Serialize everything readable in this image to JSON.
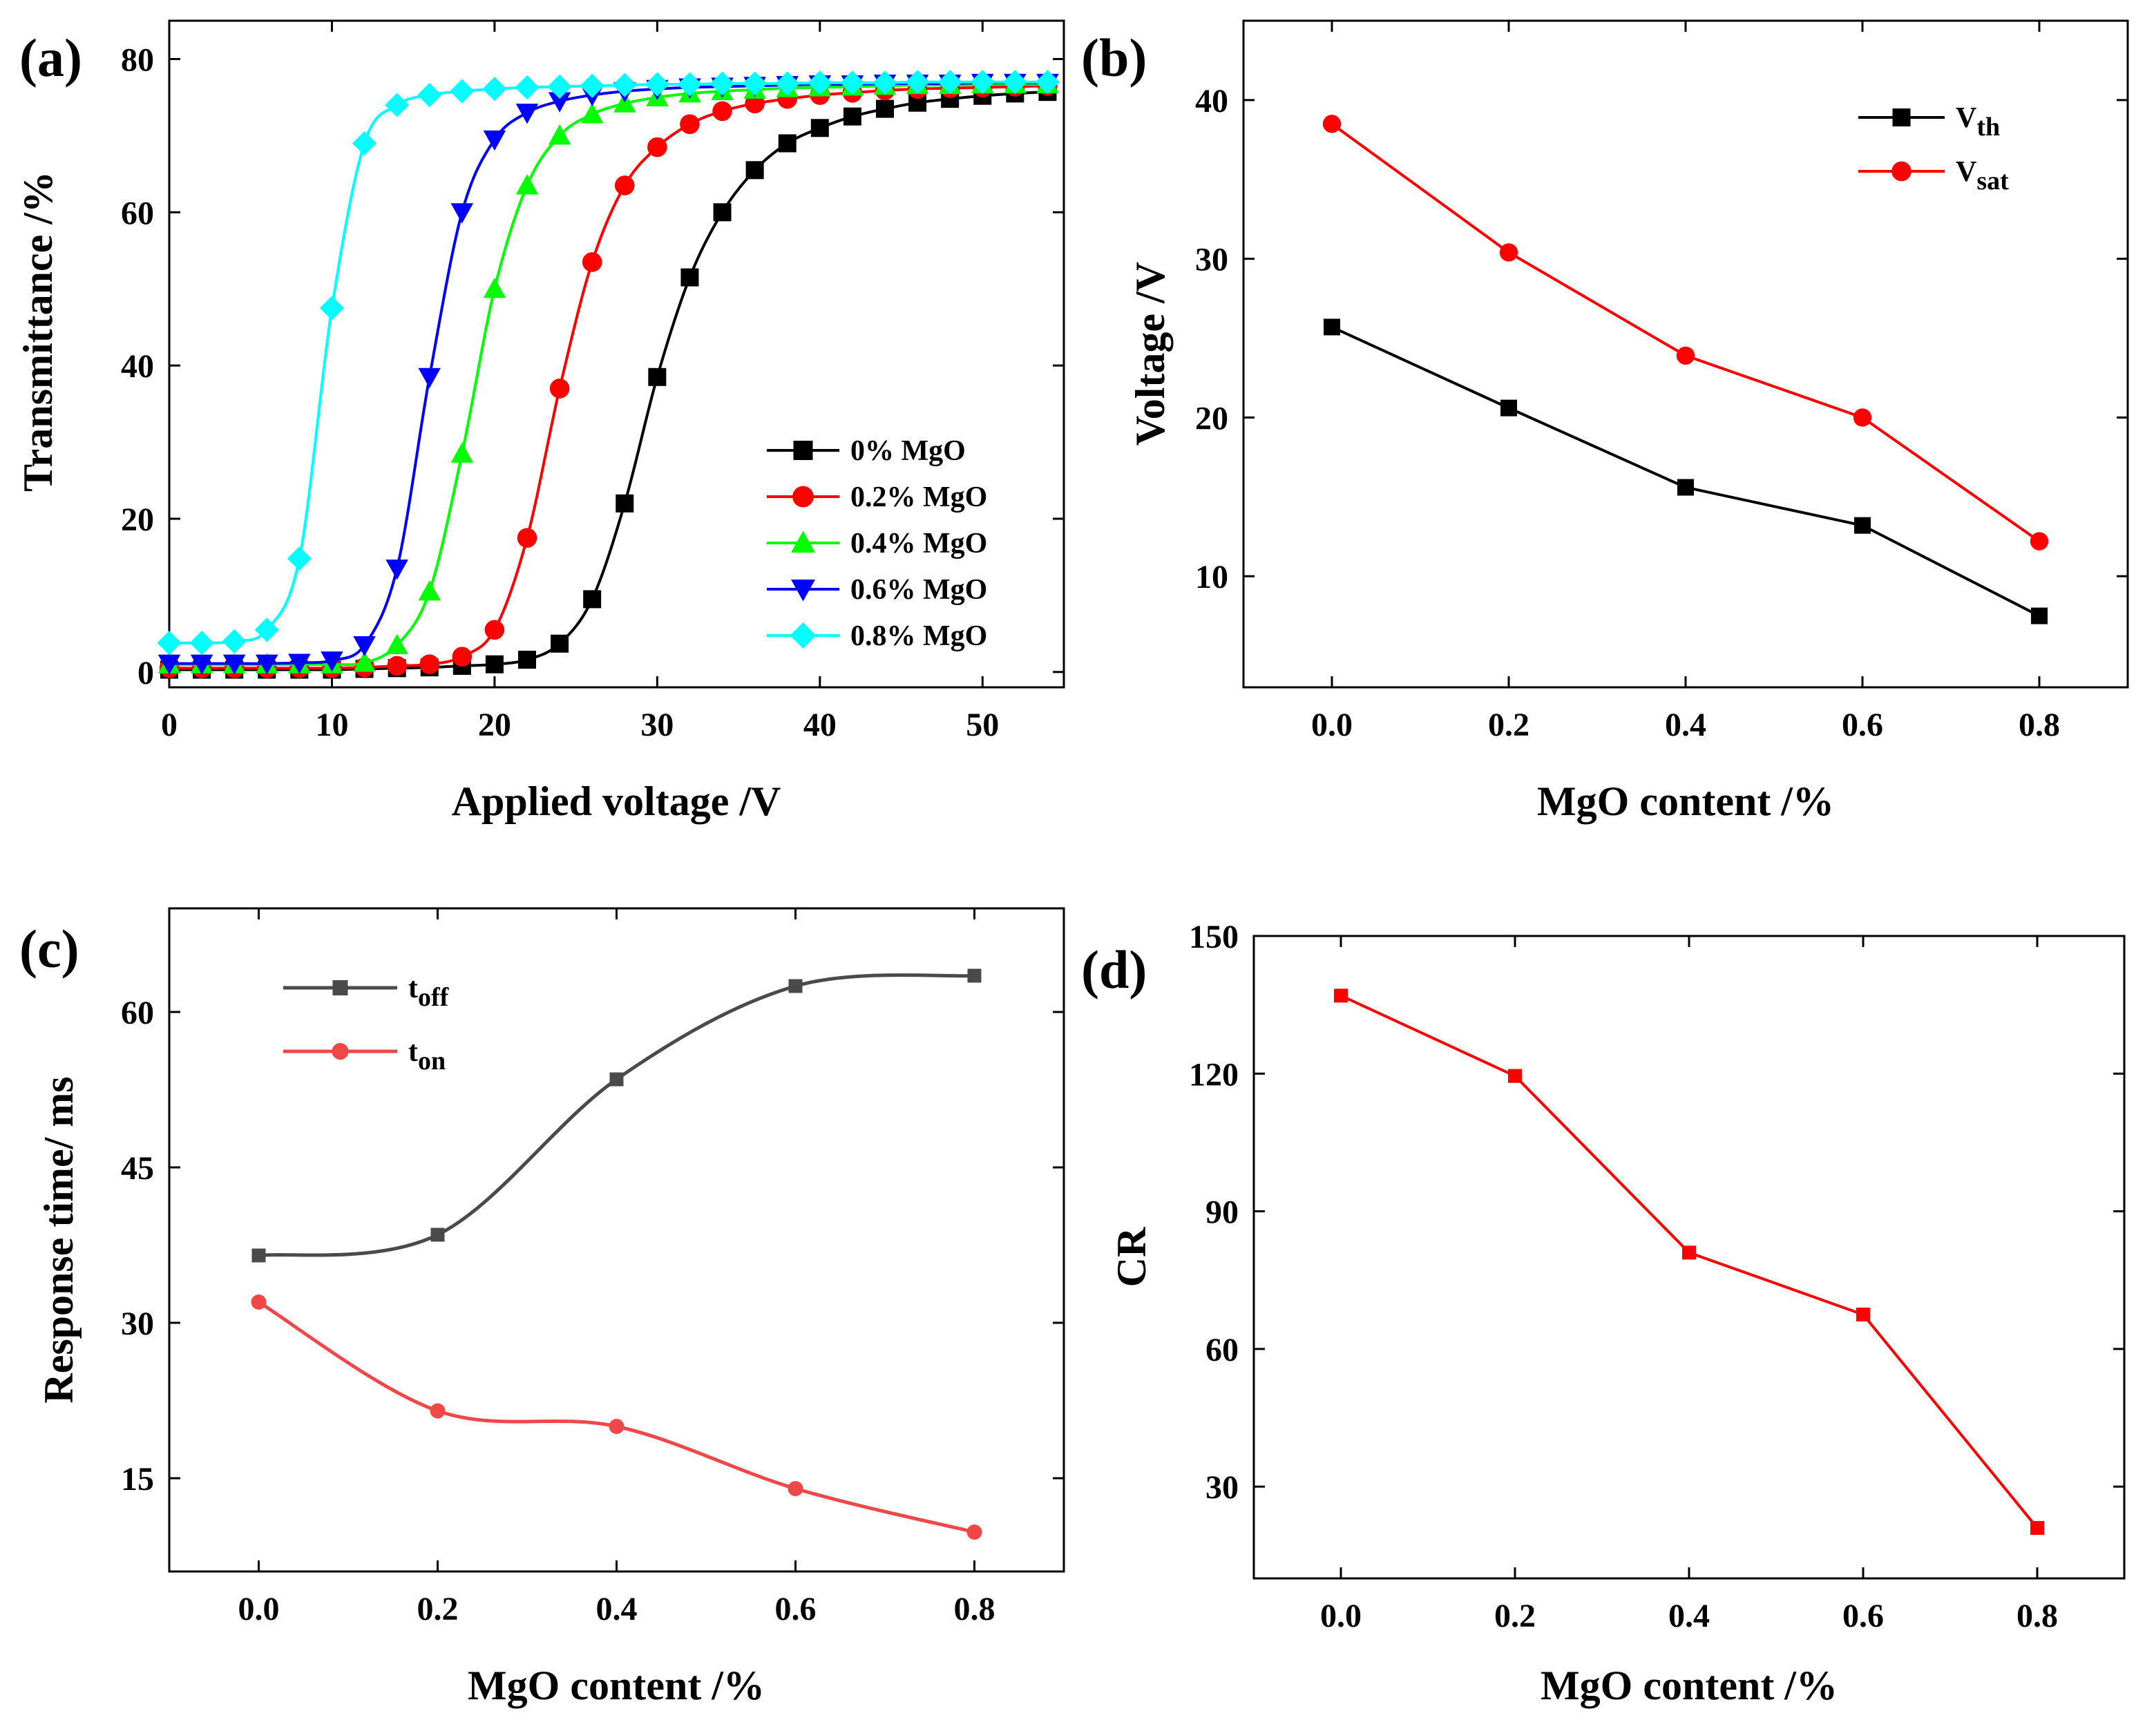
{
  "panel_labels": [
    "(a)",
    "(b)",
    "(c)",
    "(d)"
  ],
  "chart_data": [
    {
      "panel": "(a)",
      "type": "line",
      "xlabel": "Applied voltage /V",
      "ylabel": "Transmittance /%",
      "xlim": [
        0,
        55
      ],
      "ylim": [
        -2,
        85
      ],
      "xticks": [
        0,
        10,
        20,
        30,
        40,
        50
      ],
      "yticks": [
        0,
        20,
        40,
        60,
        80
      ],
      "x": [
        0,
        2,
        4,
        6,
        8,
        10,
        12,
        14,
        16,
        18,
        20,
        22,
        24,
        26,
        28,
        30,
        32,
        34,
        36,
        38,
        40,
        42,
        44,
        46,
        48,
        50,
        52,
        54
      ],
      "series": [
        {
          "name": "0% MgO",
          "color": "#000000",
          "marker": "square",
          "values": [
            0.3,
            0.3,
            0.3,
            0.3,
            0.3,
            0.3,
            0.4,
            0.5,
            0.6,
            0.8,
            1.0,
            1.6,
            3.7,
            9.5,
            22.0,
            38.5,
            51.5,
            60.0,
            65.5,
            69.0,
            71.0,
            72.5,
            73.5,
            74.3,
            74.8,
            75.2,
            75.5,
            75.7
          ]
        },
        {
          "name": "0.2% MgO",
          "color": "#ff0000",
          "marker": "circle",
          "values": [
            0.5,
            0.5,
            0.5,
            0.5,
            0.5,
            0.5,
            0.6,
            0.8,
            1.0,
            2.0,
            5.5,
            17.5,
            37.0,
            53.5,
            63.5,
            68.5,
            71.5,
            73.2,
            74.2,
            74.8,
            75.3,
            75.6,
            75.9,
            76.1,
            76.2,
            76.3,
            76.4,
            76.5
          ]
        },
        {
          "name": "0.4% MgO",
          "color": "#00ff00",
          "marker": "triangle-up",
          "values": [
            1.0,
            1.0,
            1.0,
            1.0,
            1.0,
            1.0,
            1.2,
            3.5,
            10.5,
            28.5,
            50.0,
            63.5,
            70.0,
            72.8,
            74.2,
            75.0,
            75.5,
            75.8,
            76.0,
            76.2,
            76.3,
            76.4,
            76.5,
            76.6,
            76.6,
            76.7,
            76.7,
            76.7
          ]
        },
        {
          "name": "0.6% MgO",
          "color": "#0000ff",
          "marker": "triangle-down",
          "values": [
            1.1,
            1.1,
            1.1,
            1.1,
            1.2,
            1.5,
            3.5,
            13.5,
            38.5,
            60.0,
            69.5,
            73.0,
            74.5,
            75.3,
            75.8,
            76.1,
            76.3,
            76.4,
            76.5,
            76.6,
            76.7,
            76.7,
            76.8,
            76.8,
            76.8,
            76.9,
            76.9,
            76.9
          ]
        },
        {
          "name": "0.8% MgO",
          "color": "#00ffff",
          "marker": "diamond",
          "values": [
            3.8,
            3.8,
            4.0,
            5.5,
            14.8,
            47.5,
            69.0,
            74.0,
            75.3,
            75.8,
            76.1,
            76.3,
            76.4,
            76.5,
            76.6,
            76.7,
            76.7,
            76.8,
            76.8,
            76.8,
            76.9,
            76.9,
            76.9,
            77.0,
            77.0,
            77.0,
            77.0,
            77.0
          ]
        }
      ]
    },
    {
      "panel": "(b)",
      "type": "line",
      "xlabel": "MgO content /%",
      "ylabel": "Voltage /V",
      "xlim": [
        -0.1,
        0.9
      ],
      "ylim": [
        3,
        45
      ],
      "xticks": [
        "0.0",
        "0.2",
        "0.4",
        "0.6",
        "0.8"
      ],
      "yticks": [
        10,
        20,
        30,
        40
      ],
      "x": [
        0.0,
        0.2,
        0.4,
        0.6,
        0.8
      ],
      "series": [
        {
          "name": "V",
          "subscript": "th",
          "color": "#000000",
          "marker": "square",
          "values": [
            25.7,
            20.6,
            15.6,
            13.2,
            7.5
          ]
        },
        {
          "name": "V",
          "subscript": "sat",
          "color": "#ff0000",
          "marker": "circle",
          "values": [
            38.5,
            30.4,
            23.9,
            20.0,
            12.2
          ]
        }
      ]
    },
    {
      "panel": "(c)",
      "type": "line",
      "xlabel": "MgO content /%",
      "ylabel": "Response time/ ms",
      "xlim": [
        -0.1,
        0.9
      ],
      "ylim": [
        6,
        70
      ],
      "xticks": [
        "0.0",
        "0.2",
        "0.4",
        "0.6",
        "0.8"
      ],
      "yticks": [
        15,
        30,
        45,
        60
      ],
      "x": [
        0.0,
        0.2,
        0.4,
        0.6,
        0.8
      ],
      "series": [
        {
          "name": "t",
          "subscript": "off",
          "color": "#4a4a4a",
          "marker": "square",
          "values": [
            36.5,
            38.5,
            53.5,
            62.5,
            63.5
          ]
        },
        {
          "name": "t",
          "subscript": "on",
          "color": "#f04848",
          "marker": "circle",
          "values": [
            32.0,
            21.5,
            20.0,
            14.0,
            9.8
          ]
        }
      ]
    },
    {
      "panel": "(d)",
      "type": "line",
      "xlabel": "MgO content /%",
      "ylabel": "CR",
      "xlim": [
        -0.1,
        0.9
      ],
      "ylim": [
        10,
        150
      ],
      "xticks": [
        "0.0",
        "0.2",
        "0.4",
        "0.6",
        "0.8"
      ],
      "yticks": [
        30,
        60,
        90,
        120,
        150
      ],
      "x": [
        0.0,
        0.2,
        0.4,
        0.6,
        0.8
      ],
      "series": [
        {
          "name": "CR",
          "color": "#ff0000",
          "marker": "square",
          "values": [
            137,
            119.5,
            81,
            67.5,
            21
          ]
        }
      ]
    }
  ]
}
